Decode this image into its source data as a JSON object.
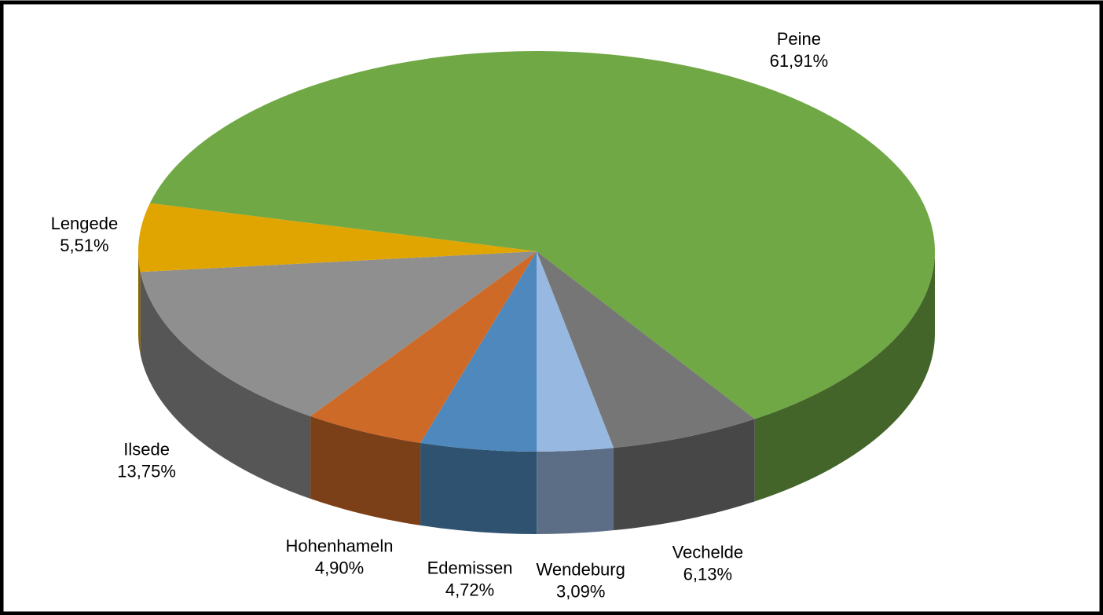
{
  "chart_data": {
    "type": "pie",
    "categories": [
      "Peine",
      "Vechelde",
      "Wendeburg",
      "Edemissen",
      "Hohenhameln",
      "Ilsede",
      "Lengede"
    ],
    "values": [
      61.91,
      6.13,
      3.09,
      4.72,
      4.9,
      13.75,
      5.51
    ],
    "value_labels": [
      "61,91%",
      "6,13%",
      "3,09%",
      "4,72%",
      "4,90%",
      "13,75%",
      "5,51%"
    ],
    "colors": [
      "#70a845",
      "#767676",
      "#97b8e0",
      "#4f88bd",
      "#ce6a28",
      "#8f8f8f",
      "#e0a500"
    ]
  }
}
